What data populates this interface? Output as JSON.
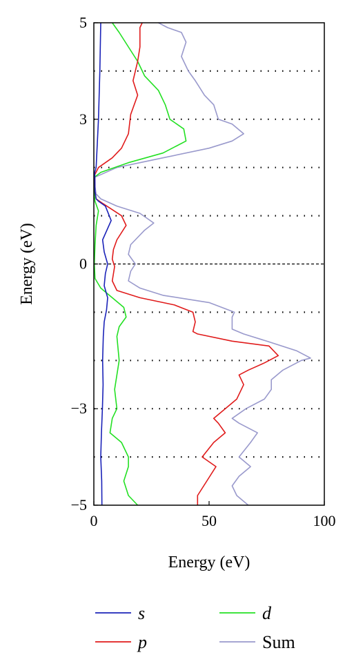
{
  "chart_data": {
    "type": "line",
    "title": "",
    "xlabel": "Energy (eV)",
    "ylabel": "Energy (eV)",
    "xlim": [
      0,
      100
    ],
    "ylim": [
      -5,
      5
    ],
    "x_ticks": [
      "0",
      "50",
      "100"
    ],
    "y_ticks": [
      "−5",
      "−3",
      "0",
      "3",
      "5"
    ],
    "dotted_gridlines_y": [
      -4,
      -3,
      -2,
      -1,
      1,
      2,
      3,
      4
    ],
    "fermi_level_y": 0,
    "legend_position": "bottom",
    "colors": {
      "s": "#1a22b8",
      "p": "#e01a1a",
      "d": "#22e022",
      "Sum": "#9999cc"
    },
    "series": [
      {
        "name": "s",
        "points": [
          [
            3.5,
            -5
          ],
          [
            3.4,
            -4.5
          ],
          [
            3,
            -4
          ],
          [
            3.3,
            -3.5
          ],
          [
            3.7,
            -3
          ],
          [
            4,
            -2.5
          ],
          [
            3.8,
            -2
          ],
          [
            4.1,
            -1.5
          ],
          [
            4.5,
            -1.2
          ],
          [
            5.5,
            -0.95
          ],
          [
            6,
            -0.7
          ],
          [
            4.5,
            -0.45
          ],
          [
            5,
            -0.2
          ],
          [
            6,
            0
          ],
          [
            4.5,
            0.25
          ],
          [
            3.8,
            0.5
          ],
          [
            7.5,
            0.9
          ],
          [
            5,
            1.2
          ],
          [
            2,
            1.3
          ],
          [
            1,
            1.35
          ],
          [
            0.5,
            1.5
          ],
          [
            0.4,
            1.9
          ],
          [
            1,
            2
          ],
          [
            1.5,
            2.5
          ],
          [
            2,
            3
          ],
          [
            2.6,
            4
          ],
          [
            3,
            5
          ]
        ]
      },
      {
        "name": "p",
        "points": [
          [
            45,
            -5
          ],
          [
            45,
            -4.8
          ],
          [
            49,
            -4.5
          ],
          [
            53,
            -4.2
          ],
          [
            47,
            -4
          ],
          [
            52,
            -3.7
          ],
          [
            57,
            -3.5
          ],
          [
            54,
            -3.3
          ],
          [
            52,
            -3.2
          ],
          [
            57,
            -3
          ],
          [
            62,
            -2.8
          ],
          [
            65,
            -2.5
          ],
          [
            63,
            -2.3
          ],
          [
            67,
            -2.2
          ],
          [
            74,
            -2.05
          ],
          [
            80,
            -1.9
          ],
          [
            76,
            -1.7
          ],
          [
            60,
            -1.6
          ],
          [
            45,
            -1.45
          ],
          [
            43,
            -1.4
          ],
          [
            44,
            -1.2
          ],
          [
            43,
            -1
          ],
          [
            35,
            -0.85
          ],
          [
            20,
            -0.7
          ],
          [
            10,
            -0.55
          ],
          [
            8,
            -0.35
          ],
          [
            9,
            -0.05
          ],
          [
            8,
            0.1
          ],
          [
            8.5,
            0.3
          ],
          [
            10,
            0.5
          ],
          [
            14,
            0.8
          ],
          [
            12,
            1
          ],
          [
            4,
            1.25
          ],
          [
            1,
            1.35
          ],
          [
            0.5,
            1.5
          ],
          [
            0.4,
            1.85
          ],
          [
            2,
            2
          ],
          [
            8,
            2.2
          ],
          [
            12,
            2.4
          ],
          [
            15,
            2.7
          ],
          [
            16,
            3.1
          ],
          [
            19,
            3.5
          ],
          [
            17,
            3.8
          ],
          [
            19,
            4.2
          ],
          [
            20,
            4.5
          ],
          [
            20,
            4.9
          ],
          [
            21,
            5
          ]
        ]
      },
      {
        "name": "d",
        "points": [
          [
            19,
            -5
          ],
          [
            15,
            -4.8
          ],
          [
            13,
            -4.5
          ],
          [
            15,
            -4.2
          ],
          [
            15,
            -4
          ],
          [
            12,
            -3.7
          ],
          [
            7,
            -3.5
          ],
          [
            8,
            -3.2
          ],
          [
            10,
            -3
          ],
          [
            9,
            -2.6
          ],
          [
            10,
            -2.3
          ],
          [
            11,
            -2
          ],
          [
            10,
            -1.5
          ],
          [
            11,
            -1.3
          ],
          [
            14,
            -1.1
          ],
          [
            13,
            -0.9
          ],
          [
            8,
            -0.7
          ],
          [
            3,
            -0.5
          ],
          [
            0.5,
            -0.3
          ],
          [
            0.2,
            0
          ],
          [
            0.5,
            0.4
          ],
          [
            1,
            0.8
          ],
          [
            2,
            1.1
          ],
          [
            0.5,
            1.3
          ],
          [
            0.3,
            1.4
          ],
          [
            0.3,
            1.8
          ],
          [
            3,
            1.9
          ],
          [
            15,
            2.1
          ],
          [
            30,
            2.3
          ],
          [
            40,
            2.55
          ],
          [
            39,
            2.8
          ],
          [
            33,
            3
          ],
          [
            31,
            3.3
          ],
          [
            28,
            3.6
          ],
          [
            22,
            3.9
          ],
          [
            19,
            4.2
          ],
          [
            15,
            4.5
          ],
          [
            11,
            4.8
          ],
          [
            8,
            5
          ]
        ]
      },
      {
        "name": "Sum",
        "points": [
          [
            67,
            -5
          ],
          [
            62,
            -4.8
          ],
          [
            60,
            -4.6
          ],
          [
            63,
            -4.4
          ],
          [
            68,
            -4.2
          ],
          [
            63,
            -4
          ],
          [
            68,
            -3.7
          ],
          [
            71,
            -3.5
          ],
          [
            63,
            -3.3
          ],
          [
            60,
            -3.2
          ],
          [
            66,
            -3
          ],
          [
            74,
            -2.8
          ],
          [
            77,
            -2.6
          ],
          [
            77,
            -2.4
          ],
          [
            82,
            -2.2
          ],
          [
            90,
            -2
          ],
          [
            94,
            -1.95
          ],
          [
            88,
            -1.8
          ],
          [
            75,
            -1.6
          ],
          [
            65,
            -1.45
          ],
          [
            60,
            -1.35
          ],
          [
            60,
            -1.1
          ],
          [
            61,
            -1
          ],
          [
            50,
            -0.8
          ],
          [
            30,
            -0.65
          ],
          [
            20,
            -0.5
          ],
          [
            15,
            -0.35
          ],
          [
            16,
            -0.15
          ],
          [
            18,
            0
          ],
          [
            15,
            0.2
          ],
          [
            16,
            0.4
          ],
          [
            22,
            0.7
          ],
          [
            26,
            0.85
          ],
          [
            20,
            1.05
          ],
          [
            10,
            1.2
          ],
          [
            3,
            1.35
          ],
          [
            1,
            1.45
          ],
          [
            0.5,
            1.6
          ],
          [
            0.5,
            1.8
          ],
          [
            10,
            2
          ],
          [
            30,
            2.2
          ],
          [
            50,
            2.4
          ],
          [
            60,
            2.55
          ],
          [
            65,
            2.7
          ],
          [
            60,
            2.9
          ],
          [
            54,
            3
          ],
          [
            52,
            3.3
          ],
          [
            48,
            3.5
          ],
          [
            44,
            3.8
          ],
          [
            41,
            4
          ],
          [
            38,
            4.3
          ],
          [
            40,
            4.6
          ],
          [
            38,
            4.8
          ],
          [
            32,
            4.9
          ],
          [
            28,
            5
          ]
        ]
      }
    ]
  }
}
